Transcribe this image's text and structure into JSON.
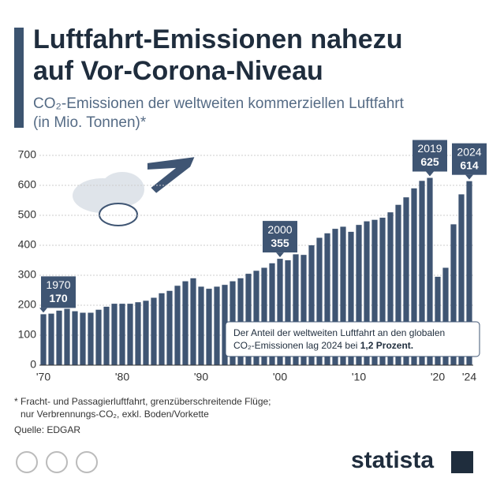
{
  "chart_data": {
    "type": "bar",
    "title_lines": [
      "Luftfahrt-Emissionen nahezu",
      "auf Vor-Corona-Niveau"
    ],
    "subtitle_lines": [
      "CO₂-Emissionen der weltweiten kommerziellen Luftfahrt",
      "(in Mio. Tonnen)*"
    ],
    "categories": [
      "'70",
      null,
      null,
      null,
      null,
      null,
      null,
      null,
      null,
      null,
      "'80",
      null,
      null,
      null,
      null,
      null,
      null,
      null,
      null,
      null,
      "'90",
      null,
      null,
      null,
      null,
      null,
      null,
      null,
      null,
      null,
      "'00",
      null,
      null,
      null,
      null,
      null,
      null,
      null,
      null,
      null,
      "'10",
      null,
      null,
      null,
      null,
      null,
      null,
      null,
      null,
      null,
      "'20",
      null,
      null,
      null,
      "'24"
    ],
    "values": [
      170,
      172,
      182,
      188,
      180,
      175,
      175,
      185,
      195,
      205,
      205,
      205,
      210,
      215,
      225,
      240,
      248,
      265,
      280,
      290,
      262,
      255,
      262,
      268,
      280,
      290,
      305,
      315,
      325,
      340,
      355,
      350,
      370,
      368,
      400,
      425,
      440,
      455,
      462,
      445,
      468,
      480,
      485,
      492,
      510,
      535,
      560,
      590,
      615,
      625,
      295,
      325,
      470,
      570,
      614
    ],
    "callout_years": [
      "1970",
      null,
      null,
      null,
      null,
      null,
      null,
      null,
      null,
      null,
      null,
      null,
      null,
      null,
      null,
      null,
      null,
      null,
      null,
      null,
      null,
      null,
      null,
      null,
      null,
      null,
      null,
      null,
      null,
      null,
      "2000",
      null,
      null,
      null,
      null,
      null,
      null,
      null,
      null,
      null,
      null,
      null,
      null,
      null,
      null,
      null,
      null,
      null,
      null,
      "2019",
      null,
      null,
      null,
      null,
      "2024"
    ],
    "color": "#3f5573",
    "ylim": [
      0,
      700
    ],
    "yticks": [
      0,
      100,
      200,
      300,
      400,
      500,
      600,
      700
    ],
    "grid": true,
    "info_box": {
      "text_lines": [
        "Der Anteil der weltweiten Luftfahrt an den globalen",
        "CO₂-Emissionen lag 2024 bei "
      ],
      "bold": "1,2 Prozent."
    },
    "footnote_lines": [
      "* Fracht- und Passagierluftfahrt, grenzüberschreitende Flüge;",
      "nur Verbrennungs-CO₂, exkl. Boden/Vorkette"
    ],
    "source": "Quelle: EDGAR",
    "brand": "statista"
  }
}
